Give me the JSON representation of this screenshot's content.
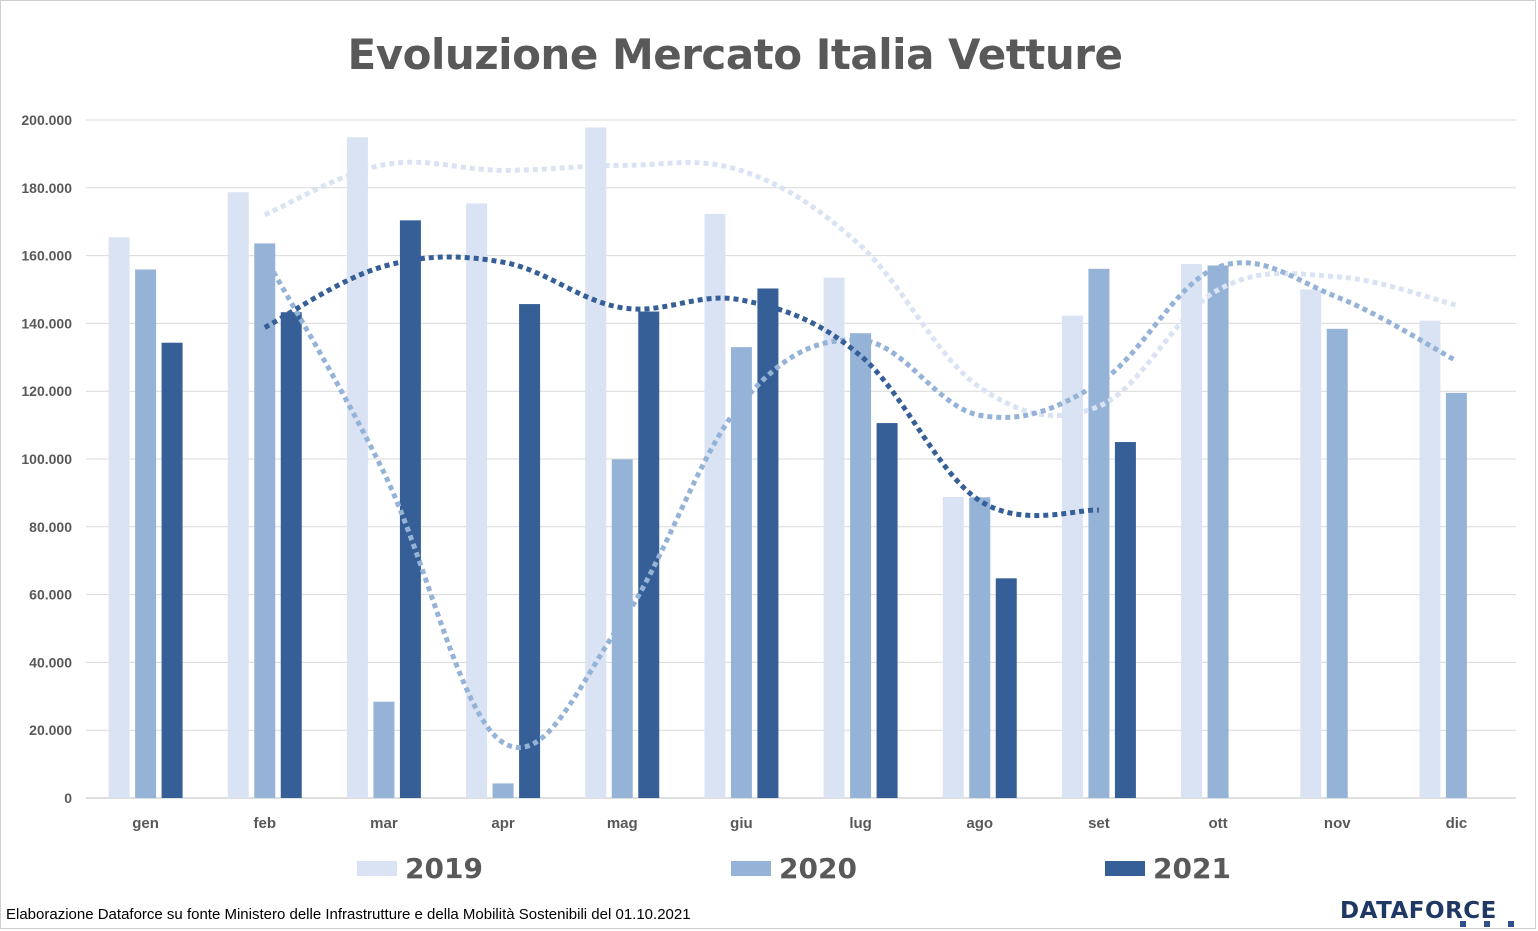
{
  "chart_data": {
    "type": "bar",
    "title": "Evoluzione Mercato Italia Vetture",
    "categories": [
      "gen",
      "feb",
      "mar",
      "apr",
      "mag",
      "giu",
      "lug",
      "ago",
      "set",
      "ott",
      "nov",
      "dic"
    ],
    "series": [
      {
        "name": "2019",
        "color": "#dae3f3",
        "values": [
          165400,
          178700,
          194900,
          175400,
          197800,
          172300,
          153500,
          88800,
          142300,
          157500,
          150000,
          140800
        ]
      },
      {
        "name": "2020",
        "color": "#95b3d7",
        "values": [
          155900,
          163600,
          28400,
          4300,
          99900,
          133000,
          137100,
          88700,
          156100,
          157100,
          138400,
          119500
        ]
      },
      {
        "name": "2021",
        "color": "#355f96",
        "values": [
          134300,
          143300,
          170400,
          145700,
          143500,
          150300,
          110600,
          64800,
          105000,
          null,
          null,
          null
        ]
      }
    ],
    "trendlines": [
      {
        "series": "2019",
        "style": "dotted",
        "color": "#dae3f3"
      },
      {
        "series": "2020",
        "style": "dotted",
        "color": "#95b3d7"
      },
      {
        "series": "2021",
        "style": "dotted",
        "color": "#355f96"
      }
    ],
    "ylim": [
      0,
      200000
    ],
    "yticks": [
      0,
      20000,
      40000,
      60000,
      80000,
      100000,
      120000,
      140000,
      160000,
      180000,
      200000
    ],
    "ytick_labels": [
      "0",
      "20.000",
      "40.000",
      "60.000",
      "80.000",
      "100.000",
      "120.000",
      "140.000",
      "160.000",
      "180.000",
      "200.000"
    ],
    "grid": true,
    "legend_position": "bottom"
  },
  "footer": {
    "source": "Elaborazione Dataforce su fonte Ministero delle Infrastrutture e della Mobilità Sostenibili del 01.10.2021",
    "logo_text": "DATAFORCE"
  }
}
